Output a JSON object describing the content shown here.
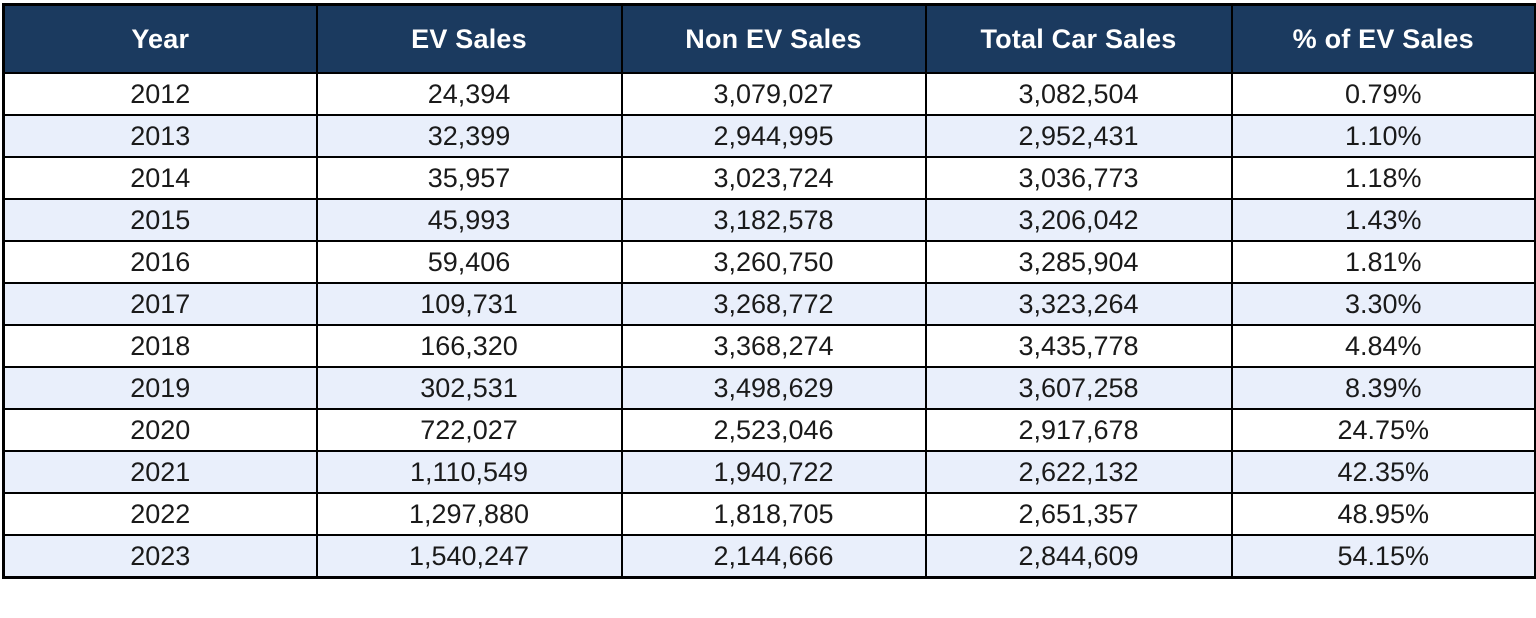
{
  "table": {
    "columns": [
      "Year",
      "EV Sales",
      "Non EV Sales",
      "Total Car Sales",
      "% of EV Sales"
    ],
    "rows": [
      [
        "2012",
        "24,394",
        "3,079,027",
        "3,082,504",
        "0.79%"
      ],
      [
        "2013",
        "32,399",
        "2,944,995",
        "2,952,431",
        "1.10%"
      ],
      [
        "2014",
        "35,957",
        "3,023,724",
        "3,036,773",
        "1.18%"
      ],
      [
        "2015",
        "45,993",
        "3,182,578",
        "3,206,042",
        "1.43%"
      ],
      [
        "2016",
        "59,406",
        "3,260,750",
        "3,285,904",
        "1.81%"
      ],
      [
        "2017",
        "109,731",
        "3,268,772",
        "3,323,264",
        "3.30%"
      ],
      [
        "2018",
        "166,320",
        "3,368,274",
        "3,435,778",
        "4.84%"
      ],
      [
        "2019",
        "302,531",
        "3,498,629",
        "3,607,258",
        "8.39%"
      ],
      [
        "2020",
        "722,027",
        "2,523,046",
        "2,917,678",
        "24.75%"
      ],
      [
        "2021",
        "1,110,549",
        "1,940,722",
        "2,622,132",
        "42.35%"
      ],
      [
        "2022",
        "1,297,880",
        "1,818,705",
        "2,651,357",
        "48.95%"
      ],
      [
        "2023",
        "1,540,247",
        "2,144,666",
        "2,844,609",
        "54.15%"
      ]
    ]
  },
  "colors": {
    "header_bg": "#1b3a5f",
    "header_text": "#ffffff",
    "row_bg": "#ffffff",
    "row_alt_bg": "#e9effb",
    "border": "#000000",
    "cell_text": "#1a1a1a"
  },
  "chart_data": {
    "type": "table",
    "title": "",
    "columns": [
      "Year",
      "EV Sales",
      "Non EV Sales",
      "Total Car Sales",
      "% of EV Sales"
    ],
    "rows": [
      [
        2012,
        24394,
        3079027,
        3082504,
        0.79
      ],
      [
        2013,
        32399,
        2944995,
        2952431,
        1.1
      ],
      [
        2014,
        35957,
        3023724,
        3036773,
        1.18
      ],
      [
        2015,
        45993,
        3182578,
        3206042,
        1.43
      ],
      [
        2016,
        59406,
        3260750,
        3285904,
        1.81
      ],
      [
        2017,
        109731,
        3268772,
        3323264,
        3.3
      ],
      [
        2018,
        166320,
        3368274,
        3435778,
        4.84
      ],
      [
        2019,
        302531,
        3498629,
        3607258,
        8.39
      ],
      [
        2020,
        722027,
        2523046,
        2917678,
        24.75
      ],
      [
        2021,
        1110549,
        1940722,
        2622132,
        42.35
      ],
      [
        2022,
        1297880,
        1818705,
        2651357,
        48.95
      ],
      [
        2023,
        1540247,
        2144666,
        2844609,
        54.15
      ]
    ],
    "pct_unit": "%",
    "layout": {
      "zebra_striping": true,
      "first_data_row_background": "white",
      "header_style": "dark-navy-with-white-bold-text",
      "all_cells_center_aligned": true,
      "grid": "black-borders-all-cells"
    }
  }
}
